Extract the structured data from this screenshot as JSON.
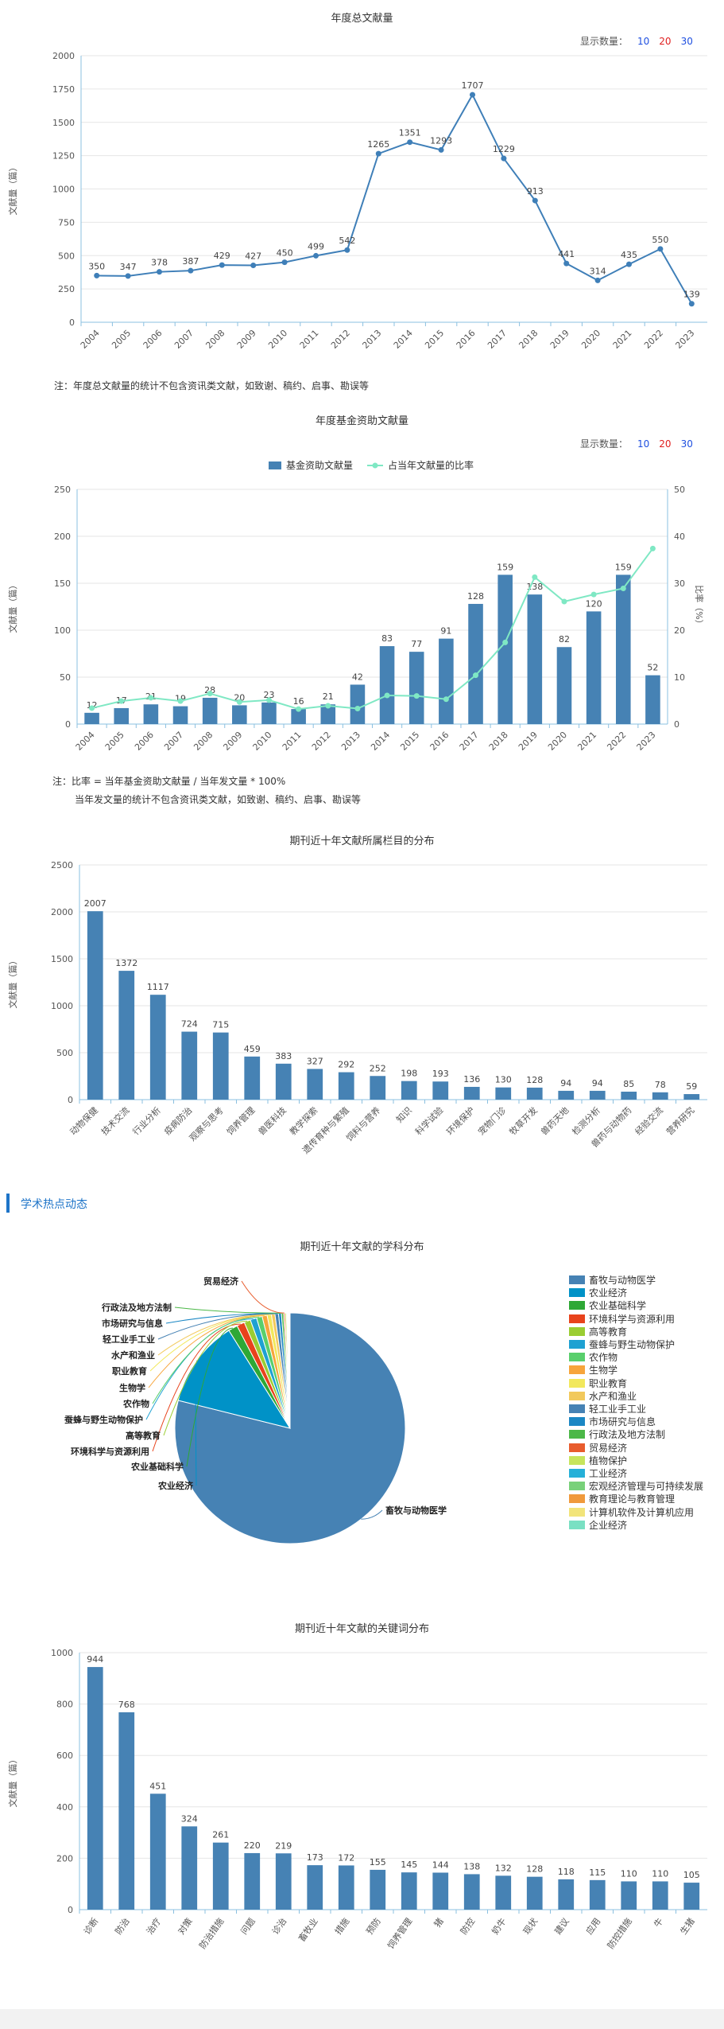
{
  "colors": {
    "primary": "#4682b4",
    "line": "#3f7fb8",
    "ratio_line": "#7fe8c4",
    "axis_line": "#8bc0e0",
    "link_10": "#1e4fe0",
    "link_20": "#e02020",
    "link_30": "#1e4fe0",
    "section_accent": "#1e74c8"
  },
  "display_count": {
    "label": "显示数量：",
    "options": [
      "10",
      "20",
      "30"
    ]
  },
  "annual": {
    "note": "注：年度总文献量的统计不包含资讯类文献，如致谢、稿约、启事、勘误等",
    "chart_data": {
      "type": "line",
      "title": "年度总文献量",
      "ylabel": "文献量（篇）",
      "ylim": [
        0,
        2000
      ],
      "yticks": [
        0,
        250,
        500,
        750,
        1000,
        1250,
        1500,
        1750,
        2000
      ],
      "categories": [
        "2004",
        "2005",
        "2006",
        "2007",
        "2008",
        "2009",
        "2010",
        "2011",
        "2012",
        "2013",
        "2014",
        "2015",
        "2016",
        "2017",
        "2018",
        "2019",
        "2020",
        "2021",
        "2022",
        "2023"
      ],
      "values": [
        350,
        347,
        378,
        387,
        429,
        427,
        450,
        499,
        542,
        1265,
        1351,
        1293,
        1707,
        1229,
        913,
        441,
        314,
        435,
        550,
        139
      ]
    }
  },
  "fund": {
    "note1": "注：比率 = 当年基金资助文献量 / 当年发文量 * 100%",
    "note2": "当年发文量的统计不包含资讯类文献，如致谢、稿约、启事、勘误等",
    "chart_data": {
      "type": "bar",
      "title": "年度基金资助文献量",
      "ylabel": "文献量（篇）",
      "y2label": "比率（%）",
      "ylim": [
        0,
        250
      ],
      "yticks": [
        0,
        50,
        100,
        150,
        200,
        250
      ],
      "y2lim": [
        0,
        50
      ],
      "y2ticks": [
        0,
        10,
        20,
        30,
        40,
        50
      ],
      "categories": [
        "2004",
        "2005",
        "2006",
        "2007",
        "2008",
        "2009",
        "2010",
        "2011",
        "2012",
        "2013",
        "2014",
        "2015",
        "2016",
        "2017",
        "2018",
        "2019",
        "2020",
        "2021",
        "2022",
        "2023"
      ],
      "series": [
        {
          "name": "基金资助文献量",
          "values": [
            12,
            17,
            21,
            19,
            28,
            20,
            23,
            16,
            21,
            42,
            83,
            77,
            91,
            128,
            159,
            138,
            82,
            120,
            159,
            52
          ]
        },
        {
          "name": "占当年文献量的比率",
          "values": [
            3.4,
            4.9,
            5.6,
            4.9,
            6.5,
            4.7,
            5.1,
            3.2,
            3.9,
            3.3,
            6.1,
            6.0,
            5.3,
            10.4,
            17.4,
            31.3,
            26.1,
            27.6,
            28.9,
            37.4
          ]
        }
      ]
    }
  },
  "columns": {
    "chart_data": {
      "type": "bar",
      "title": "期刊近十年文献所属栏目的分布",
      "ylabel": "文献量（篇）",
      "ylim": [
        0,
        2500
      ],
      "yticks": [
        0,
        500,
        1000,
        1500,
        2000,
        2500
      ],
      "categories": [
        "动物保健",
        "技术交流",
        "行业分析",
        "疫病防治",
        "观察与思考",
        "饲养管理",
        "兽医科技",
        "教学探索",
        "遗传育种与繁殖",
        "饲料与营养",
        "知识",
        "科学试验",
        "环境保护",
        "宠物门诊",
        "牧草开发",
        "兽药天地",
        "检测分析",
        "兽药与动物药",
        "经验交流",
        "营养研究"
      ],
      "values": [
        2007,
        1372,
        1117,
        724,
        715,
        459,
        383,
        327,
        292,
        252,
        198,
        193,
        136,
        130,
        128,
        94,
        94,
        85,
        78,
        59
      ]
    }
  },
  "hotspot": {
    "section_title": "学术热点动态"
  },
  "subjects": {
    "chart_data": {
      "type": "pie",
      "title": "期刊近十年文献的学科分布",
      "labels": [
        "畜牧与动物医学",
        "农业经济",
        "农业基础科学",
        "环境科学与资源利用",
        "高等教育",
        "蚕蜂与野生动物保护",
        "农作物",
        "生物学",
        "职业教育",
        "水产和渔业",
        "轻工业手工业",
        "市场研究与信息",
        "行政法及地方法制",
        "贸易经济",
        "植物保护",
        "工业经济",
        "宏观经济管理与可持续发展",
        "教育理论与教育管理",
        "计算机软件及计算机应用",
        "企业经济"
      ],
      "colors": [
        "#4682b4",
        "#0092c7",
        "#2ea836",
        "#e8431c",
        "#9acd32",
        "#1ea1d2",
        "#59cf6c",
        "#f7a53b",
        "#f2e85c",
        "#f2c95c",
        "#4682b4",
        "#1b87c4",
        "#4cb848",
        "#e85c2d",
        "#c7e55c",
        "#26b0d8",
        "#79d17a",
        "#f09a3c",
        "#f2e47a",
        "#7ae0c3"
      ],
      "values": [
        78.8,
        12.2,
        1.3,
        1.1,
        0.9,
        0.9,
        0.8,
        0.7,
        0.6,
        0.5,
        0.5,
        0.4,
        0.3,
        0.2,
        0.2,
        0.1,
        0.1,
        0.1,
        0.1,
        0.1
      ]
    }
  },
  "keywords": {
    "chart_data": {
      "type": "bar",
      "title": "期刊近十年文献的关键词分布",
      "ylabel": "文献量（篇）",
      "ylim": [
        0,
        1000
      ],
      "yticks": [
        0,
        200,
        400,
        600,
        800,
        1000
      ],
      "categories": [
        "诊断",
        "防治",
        "治疗",
        "对策",
        "防治措施",
        "问题",
        "诊治",
        "畜牧业",
        "措施",
        "预防",
        "饲养管理",
        "猪",
        "防控",
        "奶牛",
        "现状",
        "建议",
        "应用",
        "防控措施",
        "牛",
        "生猪"
      ],
      "values": [
        944,
        768,
        451,
        324,
        261,
        220,
        219,
        173,
        172,
        155,
        145,
        144,
        138,
        132,
        128,
        118,
        115,
        110,
        110,
        105
      ]
    }
  }
}
